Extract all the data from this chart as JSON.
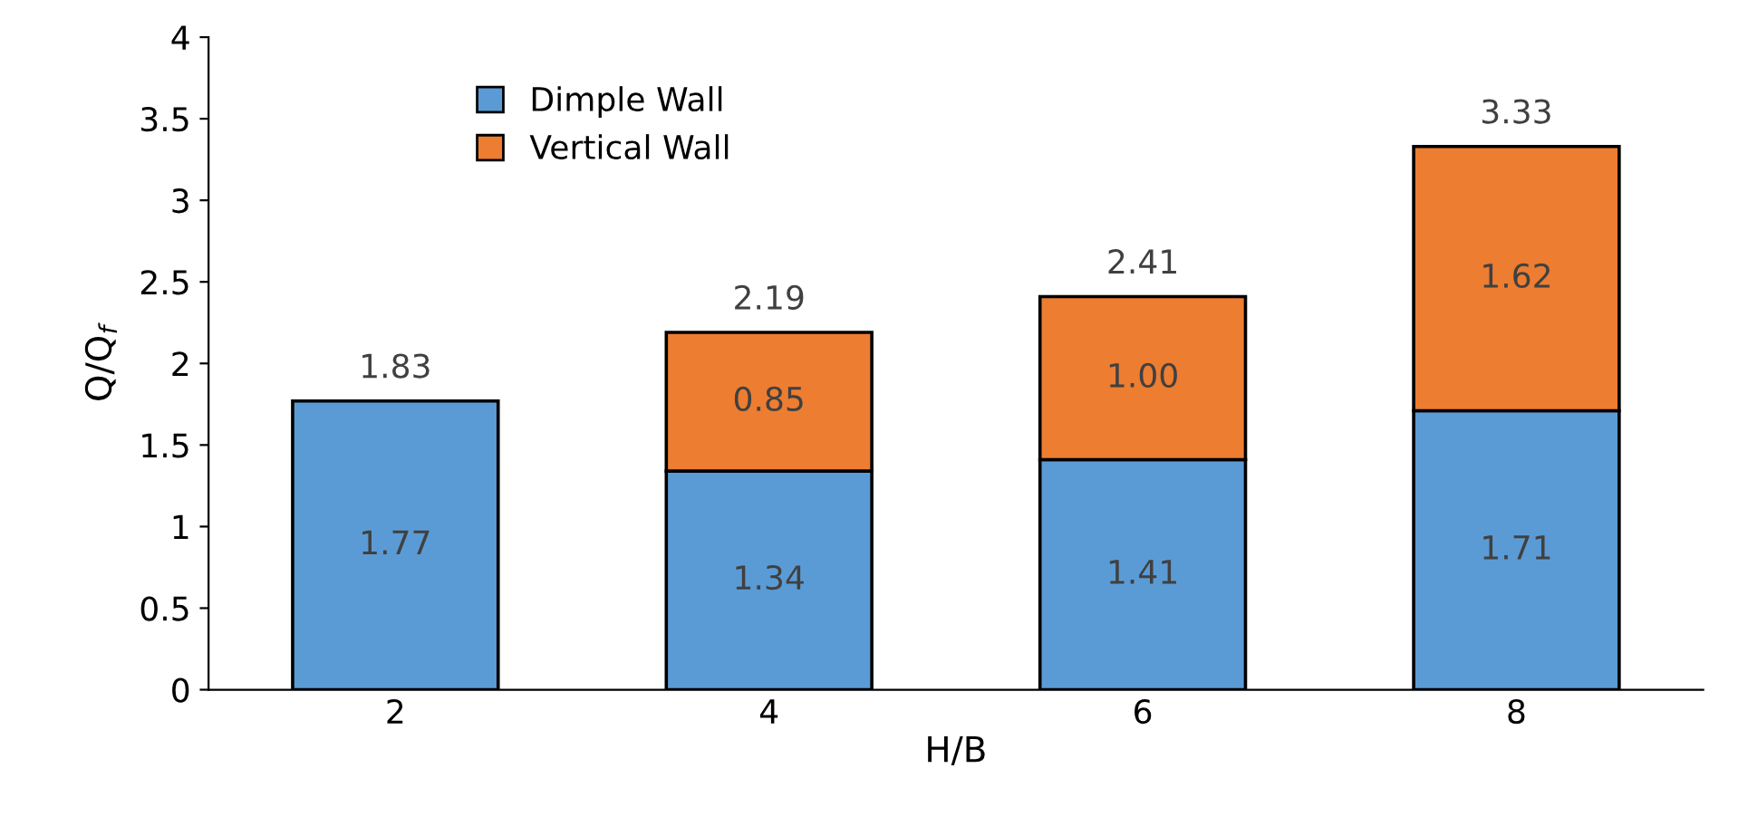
{
  "chart_data": {
    "type": "bar",
    "stacked": true,
    "xlabel": "H/B",
    "ylabel": "Q/Q$_{f}$",
    "categories": [
      "2",
      "4",
      "6",
      "8"
    ],
    "series": [
      {
        "name": "Dimple Wall",
        "color": "#5b9bd5",
        "values": [
          1.77,
          1.34,
          1.41,
          1.71
        ],
        "value_labels": [
          "1.77",
          "1.34",
          "1.41",
          "1.71"
        ]
      },
      {
        "name": "Vertical Wall",
        "color": "#ed7d31",
        "values": [
          null,
          0.85,
          1.0,
          1.62
        ],
        "value_labels": [
          null,
          "0.85",
          "1.00",
          "1.62"
        ]
      }
    ],
    "totals": [
      null,
      "2.19",
      "2.41",
      "3.33"
    ],
    "annotations": [
      {
        "text": "1.83",
        "x": "2",
        "y": 1.77
      }
    ],
    "ylim": [
      0,
      4
    ],
    "yticks": [
      0,
      0.5,
      1,
      1.5,
      2,
      2.5,
      3,
      3.5,
      4
    ],
    "grid": false,
    "legend": "top left"
  }
}
